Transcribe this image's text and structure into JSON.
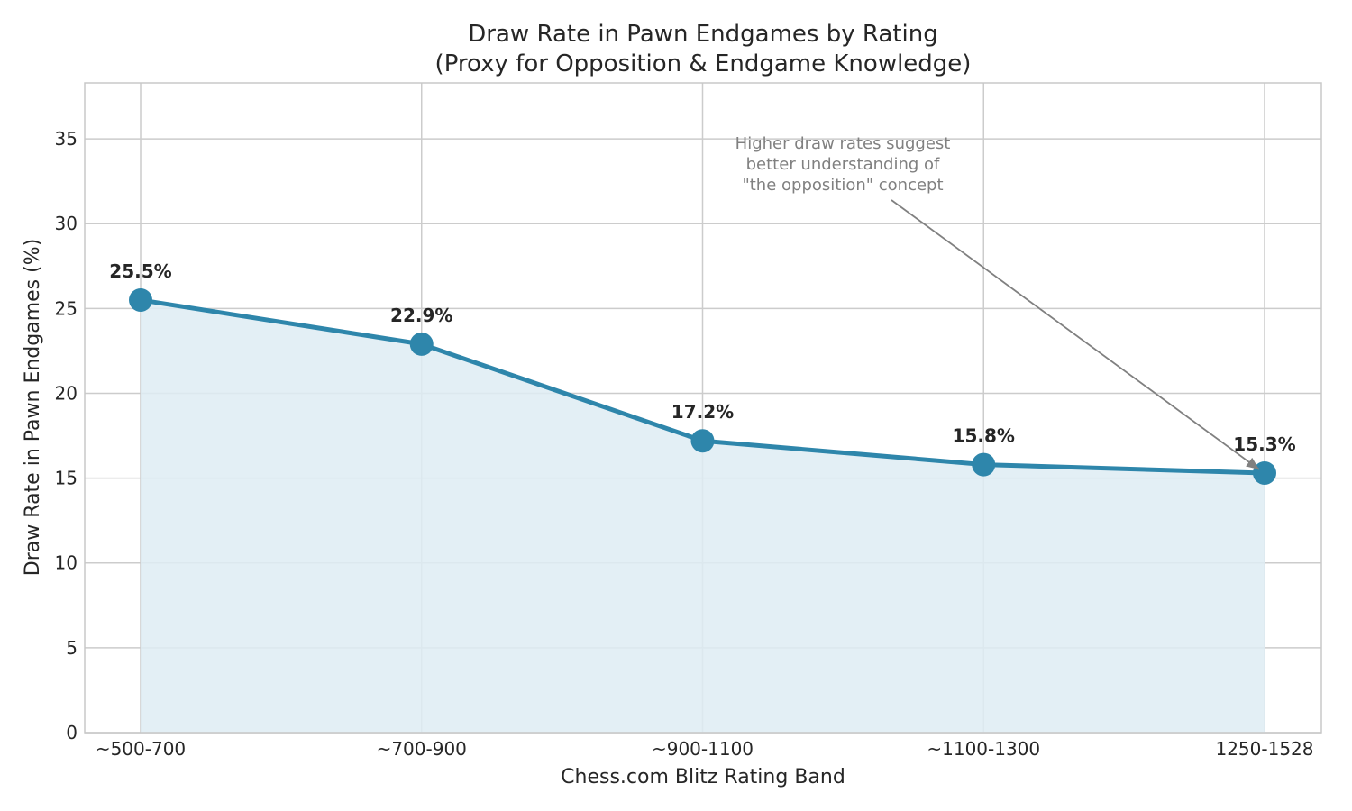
{
  "chart_data": {
    "type": "line",
    "title": "Draw Rate in Pawn Endgames by Rating",
    "subtitle": "(Proxy for Opposition & Endgame Knowledge)",
    "xlabel": "Chess.com Blitz Rating Band",
    "ylabel": "Draw Rate in Pawn Endgames (%)",
    "categories": [
      "~500-700",
      "~700-900",
      "~900-1100",
      "~1100-1300",
      "1250-1528"
    ],
    "values": [
      25.5,
      22.9,
      17.2,
      15.8,
      15.3
    ],
    "data_labels": [
      "25.5%",
      "22.9%",
      "17.2%",
      "15.8%",
      "15.3%"
    ],
    "ylim": [
      0,
      38.3
    ],
    "yticks": [
      0,
      5,
      10,
      15,
      20,
      25,
      30,
      35
    ],
    "grid": true,
    "fill_under_line": true,
    "colors": {
      "line": "#2e86ab",
      "fill": "#deecf3",
      "annotation": "#808080"
    },
    "annotation": {
      "lines": [
        "Higher draw rates suggest",
        "better understanding of",
        "\"the opposition\" concept"
      ],
      "points_to": "1250-1528"
    }
  }
}
